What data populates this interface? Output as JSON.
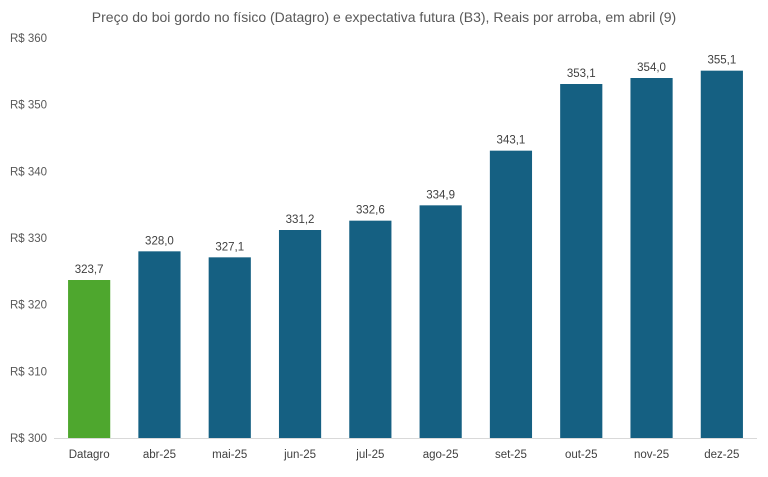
{
  "chart_data": {
    "type": "bar",
    "title": "Preço do boi gordo no físico (Datagro) e expectativa futura (B3), Reais por arroba, em abril (9)",
    "xlabel": "",
    "ylabel": "",
    "categories": [
      "Datagro",
      "abr-25",
      "mai-25",
      "jun-25",
      "jul-25",
      "ago-25",
      "set-25",
      "out-25",
      "nov-25",
      "dez-25"
    ],
    "values": [
      323.7,
      328.0,
      327.1,
      331.2,
      332.6,
      334.9,
      343.1,
      353.1,
      354.0,
      355.1
    ],
    "value_labels": [
      "323,7",
      "328,0",
      "327,1",
      "331,2",
      "332,6",
      "334,9",
      "343,1",
      "353,1",
      "354,0",
      "355,1"
    ],
    "ylim": [
      300,
      360
    ],
    "yticks": [
      300,
      310,
      320,
      330,
      340,
      350,
      360
    ],
    "ytick_labels": [
      "R$ 300",
      "R$ 310",
      "R$ 320",
      "R$ 330",
      "R$ 340",
      "R$ 350",
      "R$ 360"
    ],
    "grid": false,
    "legend": "none",
    "colors": {
      "Datagro": "#4EA72E",
      "futures": "#156082",
      "axis": "#D9D9D9"
    }
  }
}
